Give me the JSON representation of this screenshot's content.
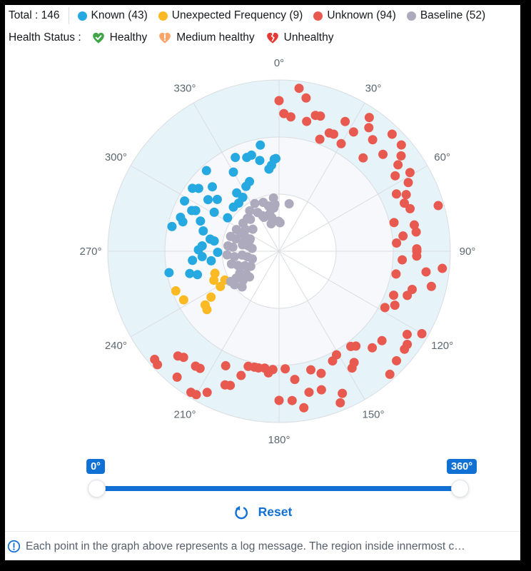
{
  "header": {
    "total": "Total : 146",
    "legend": [
      {
        "label": "Known (43)",
        "color": "#25a9e0"
      },
      {
        "label": "Unexpected Frequency (9)",
        "color": "#fbba23"
      },
      {
        "label": "Unknown (94)",
        "color": "#e85a50"
      },
      {
        "label": "Baseline (52)",
        "color": "#aeaabe"
      }
    ],
    "health_label": "Health Status :",
    "health": [
      {
        "label": "Healthy",
        "icon": "healthy-heart-check-icon",
        "color": "#3fa546"
      },
      {
        "label": "Medium healthy",
        "icon": "medium-healthy-heart-exclamation-icon",
        "color": "#f9a469"
      },
      {
        "label": "Unhealthy",
        "icon": "unhealthy-broken-heart-icon",
        "color": "#e53935"
      }
    ]
  },
  "chart_data": {
    "type": "scatter",
    "projection": "polar",
    "angle_unit": "degrees",
    "angle_ticks": [
      "0°",
      "30°",
      "60°",
      "90°",
      "120°",
      "150°",
      "180°",
      "210°",
      "240°",
      "270°",
      "300°",
      "330°"
    ],
    "ring_radii": [
      80,
      160,
      240
    ],
    "ring_fills": [
      "#ffffff",
      "#f7f8fb",
      "#e6f3f9"
    ],
    "grid_color": "#d9dde2",
    "r_max": 240,
    "point_radius": 6.5,
    "series": [
      {
        "name": "Known",
        "color": "#25a9e0",
        "points": [
          [
            358,
            130
          ],
          [
            350,
            151
          ],
          [
            344,
            140
          ],
          [
            341,
            139
          ],
          [
            357,
            129
          ],
          [
            355,
            121
          ],
          [
            353,
            116
          ],
          [
            335,
            145
          ],
          [
            330,
            128
          ],
          [
            318,
            152
          ],
          [
            337,
            106
          ],
          [
            333,
            102
          ],
          [
            306,
            150
          ],
          [
            314,
            130
          ],
          [
            306,
            123
          ],
          [
            310,
            113
          ],
          [
            324,
            101
          ],
          [
            326,
            91
          ],
          [
            320,
            88
          ],
          [
            314,
            89
          ],
          [
            298,
            150
          ],
          [
            295,
            135
          ],
          [
            296,
            130
          ],
          [
            301,
            106
          ],
          [
            289,
            146
          ],
          [
            287,
            141
          ],
          [
            303,
            86
          ],
          [
            283,
            154
          ],
          [
            285,
            110
          ],
          [
            280,
            98
          ],
          [
            279,
            92
          ],
          [
            274,
            108
          ],
          [
            271,
            113
          ],
          [
            269,
            86
          ],
          [
            262,
            96
          ],
          [
            264,
            122
          ],
          [
            259,
            157
          ],
          [
            256,
            129
          ],
          [
            254,
            119
          ],
          [
            348,
            130
          ],
          [
            291,
            118
          ],
          [
            308,
            143
          ],
          [
            266,
            108
          ]
        ]
      },
      {
        "name": "Unexpected Frequency",
        "color": "#fbba23",
        "points": [
          [
            251,
            95
          ],
          [
            242,
            86
          ],
          [
            239,
            96
          ],
          [
            249,
            155
          ],
          [
            243,
            150
          ],
          [
            236,
            115
          ],
          [
            234,
            128
          ],
          [
            231,
            130
          ],
          [
            246,
            100
          ]
        ]
      },
      {
        "name": "Unknown",
        "color": "#e85a50",
        "points": [
          [
            7,
            230
          ],
          [
            0,
            211
          ],
          [
            10,
            218
          ],
          [
            2,
            193
          ],
          [
            5,
            189
          ],
          [
            12,
            186
          ],
          [
            15,
            197
          ],
          [
            17,
            198
          ],
          [
            27,
            204
          ],
          [
            34,
            226
          ],
          [
            32,
            197
          ],
          [
            36,
            214
          ],
          [
            23,
            180
          ],
          [
            25,
            181
          ],
          [
            20,
            167
          ],
          [
            30,
            174
          ],
          [
            40,
            204
          ],
          [
            44,
            228
          ],
          [
            49,
            227
          ],
          [
            42,
            176
          ],
          [
            47,
            199
          ],
          [
            52,
            217
          ],
          [
            54,
            206
          ],
          [
            57,
            194
          ],
          [
            59,
            214
          ],
          [
            62,
            205
          ],
          [
            64,
            183
          ],
          [
            66,
            195
          ],
          [
            69,
            188
          ],
          [
            72,
            193
          ],
          [
            74,
            232
          ],
          [
            76,
            166
          ],
          [
            79,
            193
          ],
          [
            82,
            194
          ],
          [
            83,
            175
          ],
          [
            86,
            165
          ],
          [
            89,
            193
          ],
          [
            90,
            193
          ],
          [
            92,
            193
          ],
          [
            94,
            173
          ],
          [
            101,
            167
          ],
          [
            98,
            208
          ],
          [
            96,
            230
          ],
          [
            103,
            219
          ],
          [
            106,
            194
          ],
          [
            109,
            190
          ],
          [
            111,
            172
          ],
          [
            115,
            179
          ],
          [
            118,
            168
          ],
          [
            123,
            214
          ],
          [
            120,
            231
          ],
          [
            126,
            222
          ],
          [
            128,
            223
          ],
          [
            131,
            191
          ],
          [
            136,
            188
          ],
          [
            141,
            171
          ],
          [
            143,
            167
          ],
          [
            151,
            166
          ],
          [
            154,
            171
          ],
          [
            146,
            188
          ],
          [
            148,
            193
          ],
          [
            133,
            225
          ],
          [
            138,
            232
          ],
          [
            165,
            172
          ],
          [
            161,
            181
          ],
          [
            173,
            181
          ],
          [
            177,
            165
          ],
          [
            168,
            202
          ],
          [
            163,
            203
          ],
          [
            156,
            218
          ],
          [
            158,
            229
          ],
          [
            175,
            210
          ],
          [
            171,
            222
          ],
          [
            229,
            231
          ],
          [
            227,
            233
          ],
          [
            224,
            204
          ],
          [
            222,
            200
          ],
          [
            216,
            199
          ],
          [
            214,
            198
          ],
          [
            219,
            227
          ],
          [
            212,
            233
          ],
          [
            210,
            232
          ],
          [
            207,
            222
          ],
          [
            205,
            177
          ],
          [
            202,
            202
          ],
          [
            200,
            200
          ],
          [
            197,
            182
          ],
          [
            195,
            167
          ],
          [
            192,
            166
          ],
          [
            190,
            166
          ],
          [
            187,
            165
          ],
          [
            185,
            171
          ],
          [
            183,
            166
          ],
          [
            180,
            209
          ]
        ]
      },
      {
        "name": "Baseline",
        "color": "#aeaabe",
        "points": [
          [
            354,
            75
          ],
          [
            333,
            75
          ],
          [
            342,
            72
          ],
          [
            347,
            65
          ],
          [
            324,
            70
          ],
          [
            331,
            62
          ],
          [
            335,
            55
          ],
          [
            346,
            54
          ],
          [
            348,
            48
          ],
          [
            2,
            40
          ],
          [
            316,
            64
          ],
          [
            308,
            64
          ],
          [
            297,
            67
          ],
          [
            296,
            59
          ],
          [
            287,
            71
          ],
          [
            286,
            63
          ],
          [
            293,
            52
          ],
          [
            293,
            44
          ],
          [
            276,
            72
          ],
          [
            275,
            65
          ],
          [
            280,
            52
          ],
          [
            280,
            44
          ],
          [
            276,
            38
          ],
          [
            266,
            73
          ],
          [
            263,
            63
          ],
          [
            264,
            52
          ],
          [
            260,
            45
          ],
          [
            254,
            39
          ],
          [
            255,
            69
          ],
          [
            251,
            61
          ],
          [
            247,
            52
          ],
          [
            242,
            45
          ],
          [
            241,
            63
          ],
          [
            235,
            56
          ],
          [
            238,
            71
          ],
          [
            231,
            65
          ],
          [
            229,
            55
          ],
          [
            233,
            78
          ],
          [
            226,
            72
          ],
          [
            353,
            61
          ],
          [
            359,
            42
          ],
          [
            12,
            68
          ],
          [
            238,
            80
          ],
          [
            237,
            67
          ],
          [
            303,
            56
          ],
          [
            310,
            48
          ],
          [
            318,
            60
          ],
          [
            290,
            44
          ],
          [
            283,
            52
          ],
          [
            336,
            52
          ],
          [
            344,
            40
          ],
          [
            355,
            66
          ]
        ]
      }
    ]
  },
  "slider": {
    "min": 0,
    "max": 360,
    "min_label": "0°",
    "max_label": "360°",
    "reset_label": "Reset",
    "accent": "#1170d4"
  },
  "footer": {
    "info_text": "Each point in the graph above represents a log message. The region inside innermost c…"
  }
}
